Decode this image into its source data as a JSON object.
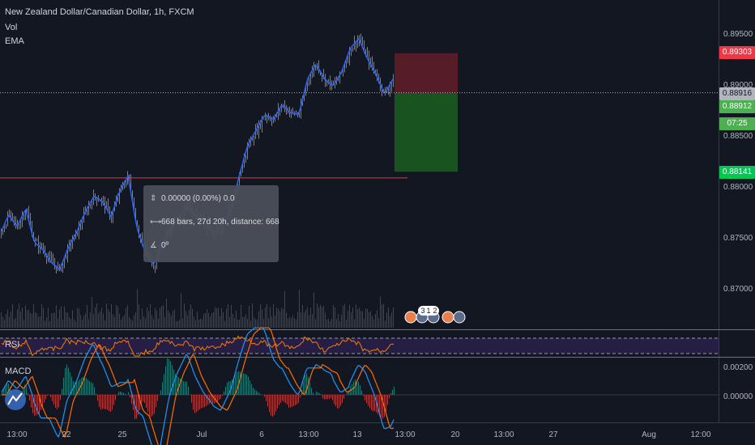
{
  "header": {
    "symbol_title": "New Zealand Dollar/Canadian Dollar, 1h, FXCM",
    "vol_label": "Vol",
    "ema_label": "EMA"
  },
  "price_axis": {
    "ticks": [
      "0.89500",
      "0.89000",
      "0.88500",
      "0.88000",
      "0.87500",
      "0.87000"
    ],
    "tags": {
      "stop": "0.89303",
      "current": "0.88916",
      "entry": "0.88912",
      "countdown": "07:25",
      "target": "0.88141"
    },
    "colors": {
      "stop": "#f23645",
      "current": "#b2b5be",
      "entry": "#4caf50",
      "target": "#00c853"
    }
  },
  "panes": {
    "rsi_label": "RSI",
    "macd_label": "MACD",
    "macd_ticks": [
      "0.00200",
      "0.00000"
    ]
  },
  "time_axis": {
    "labels": [
      "13:00",
      "22",
      "25",
      "Jul",
      "6",
      "13:00",
      "13",
      "13:00",
      "20",
      "13:00",
      "27",
      "Aug",
      "12:00"
    ]
  },
  "tooltip": {
    "price_change": "0.00000 (0.00%) 0.0",
    "bars": "668 bars, 27d 20h, distance: 668",
    "angle": "0º"
  },
  "event_badges": [
    "3",
    "1",
    "2"
  ],
  "chart_data": {
    "type": "candlestick",
    "title": "New Zealand Dollar/Canadian Dollar, 1h, FXCM",
    "x_labels": [
      "13:00",
      "22",
      "25",
      "Jul",
      "6",
      "13:00",
      "13",
      "13:00",
      "20",
      "13:00",
      "27",
      "Aug",
      "12:00"
    ],
    "ylim": [
      0.8665,
      0.8965
    ],
    "y_ticks": [
      0.895,
      0.89,
      0.885,
      0.88,
      0.875,
      0.87
    ],
    "close_path": [
      [
        0.8752,
        0.8772,
        0.876,
        0.8778,
        0.8745,
        0.8738,
        0.8725,
        0.8718,
        0.874,
        0.8755,
        0.8775,
        0.879,
        0.8785,
        0.877,
        0.8795,
        0.881,
        0.876,
        0.8735,
        0.8722,
        0.8745,
        0.876,
        0.8768,
        0.878,
        0.877,
        0.8762,
        0.8755,
        0.876,
        0.8775,
        0.881,
        0.884,
        0.8855,
        0.887,
        0.8865,
        0.888,
        0.8872,
        0.887,
        0.8905,
        0.892,
        0.8905,
        0.8898,
        0.8912,
        0.8935,
        0.8945,
        0.8925,
        0.891,
        0.889,
        0.8905
      ],
      [
        0.8752,
        0.8772,
        0.876,
        0.8778,
        0.8745,
        0.8738,
        0.8725,
        0.8718,
        0.874,
        0.8755,
        0.8775,
        0.879,
        0.8785,
        0.877,
        0.8795,
        0.881,
        0.876,
        0.8735,
        0.8722,
        0.8745,
        0.876,
        0.8768,
        0.878,
        0.877,
        0.8762,
        0.8755,
        0.876,
        0.8775,
        0.881,
        0.884,
        0.8855,
        0.887,
        0.8865,
        0.888,
        0.8872,
        0.887,
        0.8905,
        0.892,
        0.8905,
        0.8898,
        0.8912,
        0.8935,
        0.8945,
        0.8925,
        0.891,
        0.889,
        0.8905
      ]
    ],
    "resistance_level": 0.8808,
    "position": {
      "entry": 0.88912,
      "stop": 0.89303,
      "target": 0.88141
    },
    "current_price": 0.88916
  }
}
